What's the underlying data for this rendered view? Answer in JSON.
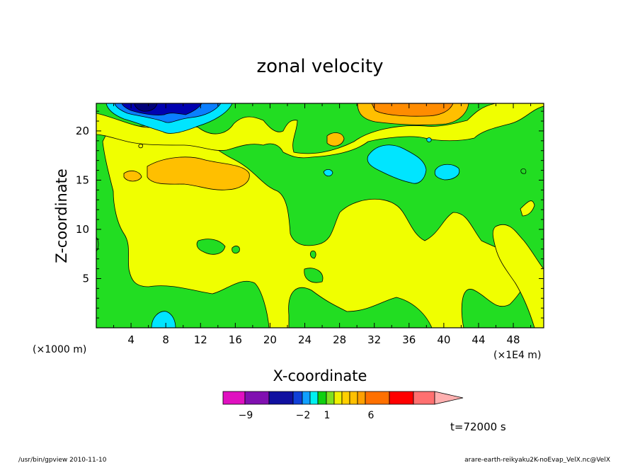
{
  "chart_data": {
    "type": "heatmap",
    "title": "zonal velocity",
    "xlabel": "X-coordinate",
    "ylabel": "Z-coordinate",
    "x_unit_left": "(×1000 m)",
    "x_unit_right": "(×1E4 m)",
    "xlim": [
      0,
      51.5
    ],
    "ylim": [
      0,
      22.8
    ],
    "x_ticks": [
      4,
      8,
      12,
      16,
      20,
      24,
      28,
      32,
      36,
      40,
      44,
      48
    ],
    "y_ticks": [
      5,
      10,
      15,
      20
    ],
    "time_label": "t=72000 s",
    "colorbar": {
      "tick_labels": [
        {
          "text": "−9",
          "index": 1
        },
        {
          "text": "−2",
          "index": 3
        },
        {
          "text": "1",
          "index": 4
        },
        {
          "text": "6",
          "index": 6
        }
      ],
      "colors": [
        "#e010c0",
        "#8010b0",
        "#1010a0",
        "#1040d8",
        "#10a0ff",
        "#00f0f0",
        "#10d010",
        "#80e020",
        "#f0f000",
        "#ffd000",
        "#ffc000",
        "#ffa000",
        "#ff7000",
        "#ff0000",
        "#ff7070",
        "#ffb0b0"
      ]
    },
    "field_colors": {
      "green": "#22dd22",
      "yellow": "#f0ff00",
      "orange": "#ffbf00",
      "dark_orange": "#ff8c00",
      "cyan": "#00e5ff",
      "blue": "#0a7fff",
      "dark_blue": "#0000b0",
      "navy": "#00007a"
    }
  },
  "footer": {
    "left": "/usr/bin/gpview   2010-11-10",
    "right": "arare-earth-reikyaku2K-noEvap_VelX.nc@VelX"
  }
}
